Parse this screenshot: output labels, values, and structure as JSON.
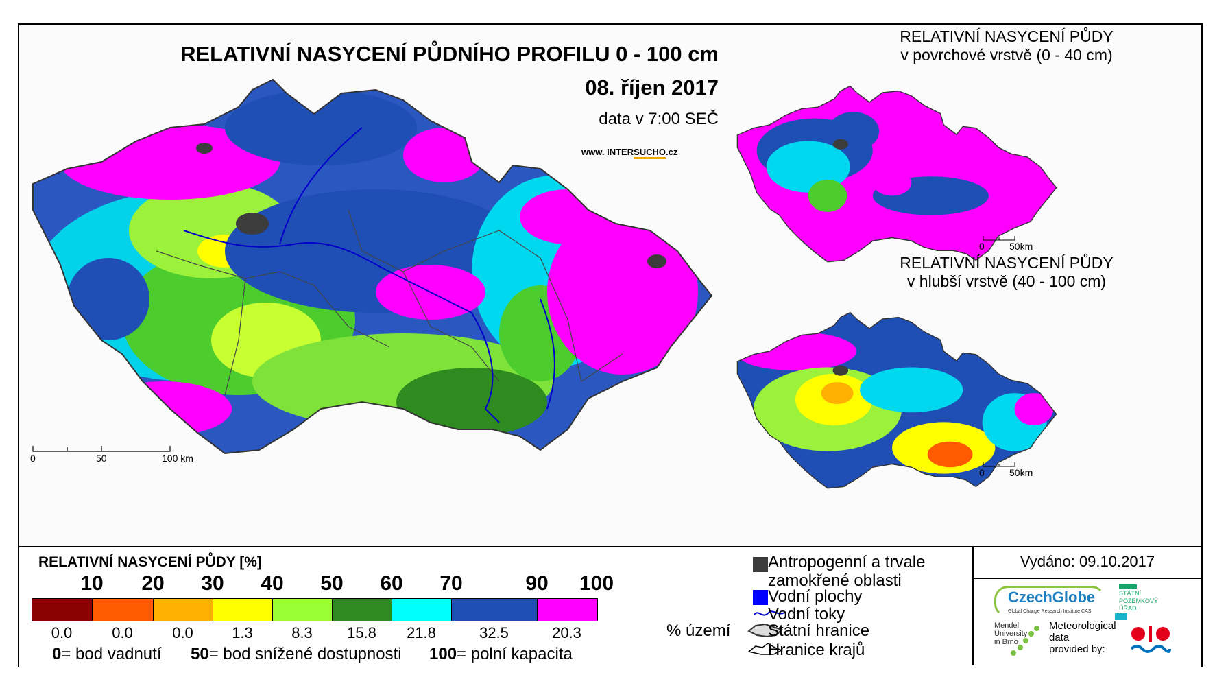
{
  "main_map": {
    "title": "RELATIVNÍ NASYCENÍ PŮDNÍHO PROFILU 0 - 100 cm",
    "date": "08. říjen 2017",
    "time_note": "data v 7:00 SEČ",
    "website_prefix": "www. INTER",
    "website_highlight": "SUCHO",
    "website_suffix": ".cz",
    "scalebar": {
      "tick_0": "0",
      "tick_50": "50",
      "tick_100": "100 km"
    }
  },
  "inset_top": {
    "title_line1": "RELATIVNÍ NASYCENÍ PŮDY",
    "title_line2": "v povrchové vrstvě (0 - 40 cm)",
    "scalebar": {
      "tick_0": "0",
      "tick_50": "50km"
    }
  },
  "inset_bottom": {
    "title_line1": "RELATIVNÍ NASYCENÍ PŮDY",
    "title_line2": "v hlubší vrstvě (40 - 100 cm)",
    "scalebar": {
      "tick_0": "0",
      "tick_50": "50km"
    }
  },
  "legend": {
    "title": "RELATIVNÍ NASYCENÍ PŮDY [%]",
    "thresholds": [
      "10",
      "20",
      "30",
      "40",
      "50",
      "60",
      "70",
      "90",
      "100"
    ],
    "classes": [
      {
        "color": "#8b0000",
        "share": "0.0"
      },
      {
        "color": "#ff5a00",
        "share": "0.0"
      },
      {
        "color": "#ffb000",
        "share": "0.0"
      },
      {
        "color": "#ffff00",
        "share": "1.3"
      },
      {
        "color": "#99ff33",
        "share": "8.3"
      },
      {
        "color": "#2e8b20",
        "share": "15.8"
      },
      {
        "color": "#00ffff",
        "share": "21.8"
      },
      {
        "color": "#1f4fb4",
        "share": "32.5"
      },
      {
        "color": "#ff00ff",
        "share": "20.3"
      }
    ],
    "share_unit": "% území",
    "notes": [
      {
        "value": "0",
        "text": "= bod vadnutí"
      },
      {
        "value": "50",
        "text": "= bod snížené dostupnosti"
      },
      {
        "value": "100",
        "text": "= polní kapacita"
      }
    ]
  },
  "symbols": {
    "anthropogenic": "Antropogenní a trvale zamokřené oblasti",
    "water_bodies": "Vodní plochy",
    "rivers": "Vodní toky",
    "state_border": "Státní hranice",
    "region_border": "Hranice krajů",
    "colors": {
      "anthropogenic": "#3c3c3c",
      "water": "#0000ff",
      "river": "#0000cc"
    }
  },
  "issued": "Vydáno: 09.10.2017",
  "logos": {
    "czechglobe": "CzechGlobe",
    "czechglobe_sub": "Global Change Research Institute CAS",
    "spu": [
      "STÁTNÍ",
      "POZEMKOVÝ",
      "ÚŘAD"
    ],
    "mendel": [
      "Mendel",
      "University",
      "in Brno"
    ],
    "meteo": [
      "Meteorological",
      "data",
      "provided by:"
    ]
  }
}
